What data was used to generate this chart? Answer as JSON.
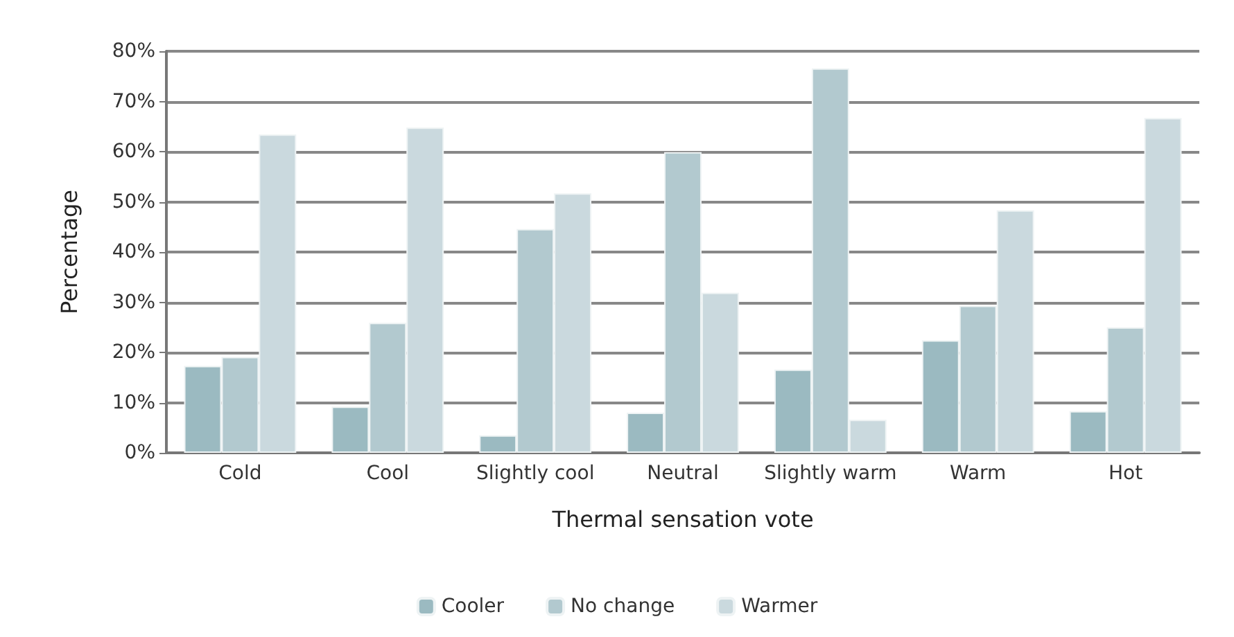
{
  "chart_data": {
    "type": "bar",
    "xlabel": "Thermal sensation vote",
    "ylabel": "Percentage",
    "categories": [
      "Cold",
      "Cool",
      "Slightly cool",
      "Neutral",
      "Slightly warm",
      "Warm",
      "Hot"
    ],
    "series": [
      {
        "name": "Cooler",
        "color": "#9bbac1",
        "values": [
          17.3,
          9.2,
          3.5,
          8.0,
          16.6,
          22.4,
          8.3
        ]
      },
      {
        "name": "No change",
        "color": "#b2c9cf",
        "values": [
          19.1,
          25.9,
          44.6,
          59.9,
          76.6,
          29.3,
          25.0
        ]
      },
      {
        "name": "Warmer",
        "color": "#cad9de",
        "values": [
          63.4,
          64.8,
          51.7,
          31.9,
          6.6,
          48.3,
          66.7
        ]
      }
    ],
    "ylim": [
      0,
      80
    ],
    "yticks": [
      {
        "value": 0,
        "label": "0%"
      },
      {
        "value": 10,
        "label": "10%"
      },
      {
        "value": 20,
        "label": "20%"
      },
      {
        "value": 30,
        "label": "30%"
      },
      {
        "value": 40,
        "label": "40%"
      },
      {
        "value": 50,
        "label": "50%"
      },
      {
        "value": 60,
        "label": "60%"
      },
      {
        "value": 70,
        "label": "70%"
      },
      {
        "value": 80,
        "label": "80%"
      }
    ],
    "grid": "y",
    "legend": "bottom"
  }
}
